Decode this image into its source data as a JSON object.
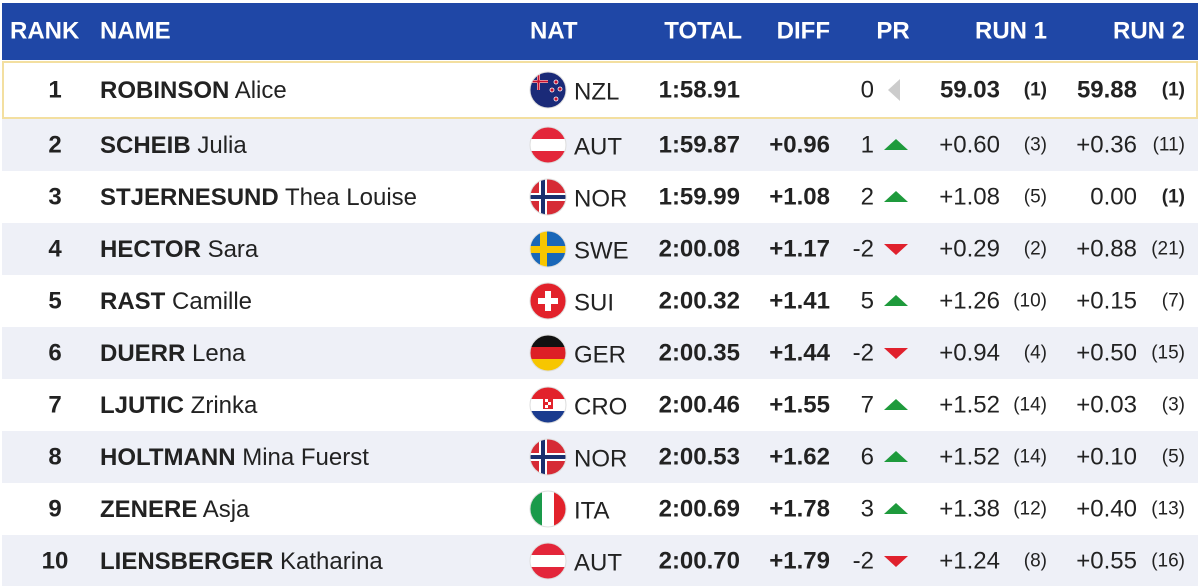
{
  "header": {
    "rank": "RANK",
    "name": "NAME",
    "nat": "NAT",
    "total": "TOTAL",
    "diff": "DIFF",
    "pr": "PR",
    "run1": "RUN 1",
    "run2": "RUN 2"
  },
  "rows": [
    {
      "rank": "1",
      "surname": "ROBINSON",
      "given": "Alice",
      "nat": "NZL",
      "total": "1:58.91",
      "diff": null,
      "pr": "0",
      "run1": "59.03",
      "run1_rank": "(1)",
      "run2": "59.88",
      "run2_rank": "(1)"
    },
    {
      "rank": "2",
      "surname": "SCHEIB",
      "given": "Julia",
      "nat": "AUT",
      "total": "1:59.87",
      "diff": "+0.96",
      "pr": "1",
      "run1": "+0.60",
      "run1_rank": "(3)",
      "run2": "+0.36",
      "run2_rank": "(11)"
    },
    {
      "rank": "3",
      "surname": "STJERNESUND",
      "given": "Thea Louise",
      "nat": "NOR",
      "total": "1:59.99",
      "diff": "+1.08",
      "pr": "2",
      "run1": "+1.08",
      "run1_rank": "(5)",
      "run2": "0.00",
      "run2_rank": "(1)"
    },
    {
      "rank": "4",
      "surname": "HECTOR",
      "given": "Sara",
      "nat": "SWE",
      "total": "2:00.08",
      "diff": "+1.17",
      "pr": "-2",
      "run1": "+0.29",
      "run1_rank": "(2)",
      "run2": "+0.88",
      "run2_rank": "(21)"
    },
    {
      "rank": "5",
      "surname": "RAST",
      "given": "Camille",
      "nat": "SUI",
      "total": "2:00.32",
      "diff": "+1.41",
      "pr": "5",
      "run1": "+1.26",
      "run1_rank": "(10)",
      "run2": "+0.15",
      "run2_rank": "(7)"
    },
    {
      "rank": "6",
      "surname": "DUERR",
      "given": "Lena",
      "nat": "GER",
      "total": "2:00.35",
      "diff": "+1.44",
      "pr": "-2",
      "run1": "+0.94",
      "run1_rank": "(4)",
      "run2": "+0.50",
      "run2_rank": "(15)"
    },
    {
      "rank": "7",
      "surname": "LJUTIC",
      "given": "Zrinka",
      "nat": "CRO",
      "total": "2:00.46",
      "diff": "+1.55",
      "pr": "7",
      "run1": "+1.52",
      "run1_rank": "(14)",
      "run2": "+0.03",
      "run2_rank": "(3)"
    },
    {
      "rank": "8",
      "surname": "HOLTMANN",
      "given": "Mina Fuerst",
      "nat": "NOR",
      "total": "2:00.53",
      "diff": "+1.62",
      "pr": "6",
      "run1": "+1.52",
      "run1_rank": "(14)",
      "run2": "+0.10",
      "run2_rank": "(5)"
    },
    {
      "rank": "9",
      "surname": "ZENERE",
      "given": "Asja",
      "nat": "ITA",
      "total": "2:00.69",
      "diff": "+1.78",
      "pr": "3",
      "run1": "+1.38",
      "run1_rank": "(12)",
      "run2": "+0.40",
      "run2_rank": "(13)"
    },
    {
      "rank": "10",
      "surname": "LIENSBERGER",
      "given": "Katharina",
      "nat": "AUT",
      "total": "2:00.70",
      "diff": "+1.79",
      "pr": "-2",
      "run1": "+1.24",
      "run1_rank": "(8)",
      "run2": "+0.55",
      "run2_rank": "(16)"
    }
  ]
}
